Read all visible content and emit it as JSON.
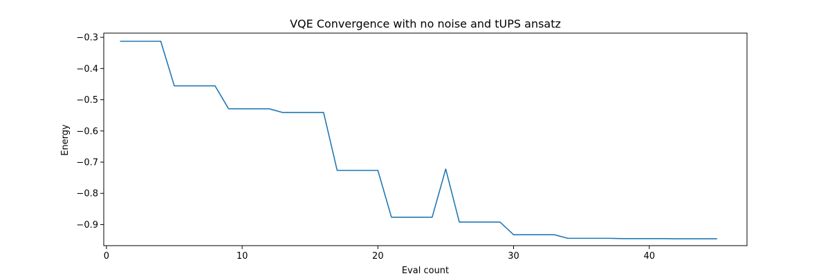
{
  "chart_data": {
    "type": "line",
    "title": "VQE Convergence with no noise and tUPS ansatz",
    "xlabel": "Eval count",
    "ylabel": "Energy",
    "xlim": [
      -0.2,
      47.2
    ],
    "ylim": [
      -0.9675,
      -0.2865
    ],
    "xticks": [
      0,
      10,
      20,
      30,
      40
    ],
    "yticks": [
      -0.3,
      -0.4,
      -0.5,
      -0.6,
      -0.7,
      -0.8,
      -0.9
    ],
    "ytick_labels": [
      "−0.3",
      "−0.4",
      "−0.5",
      "−0.6",
      "−0.7",
      "−0.8",
      "−0.9"
    ],
    "grid": false,
    "series": [
      {
        "color": "#1f77b4",
        "x": [
          1,
          2,
          3,
          4,
          5,
          6,
          7,
          8,
          9,
          10,
          11,
          12,
          13,
          14,
          15,
          16,
          17,
          18,
          19,
          20,
          21,
          22,
          23,
          24,
          25,
          26,
          27,
          28,
          29,
          30,
          31,
          32,
          33,
          34,
          35,
          36,
          37,
          38,
          39,
          40,
          41,
          42,
          43,
          44,
          45
        ],
        "y": [
          -0.3125,
          -0.3125,
          -0.3125,
          -0.3125,
          -0.4555,
          -0.4555,
          -0.4555,
          -0.4555,
          -0.529,
          -0.529,
          -0.529,
          -0.529,
          -0.541,
          -0.541,
          -0.541,
          -0.541,
          -0.7265,
          -0.7265,
          -0.7265,
          -0.7265,
          -0.8765,
          -0.8765,
          -0.8765,
          -0.8765,
          -0.722,
          -0.892,
          -0.892,
          -0.892,
          -0.892,
          -0.9325,
          -0.9325,
          -0.9325,
          -0.9325,
          -0.944,
          -0.944,
          -0.944,
          -0.944,
          -0.945,
          -0.945,
          -0.945,
          -0.945,
          -0.9455,
          -0.9455,
          -0.9455,
          -0.9455
        ]
      }
    ]
  }
}
